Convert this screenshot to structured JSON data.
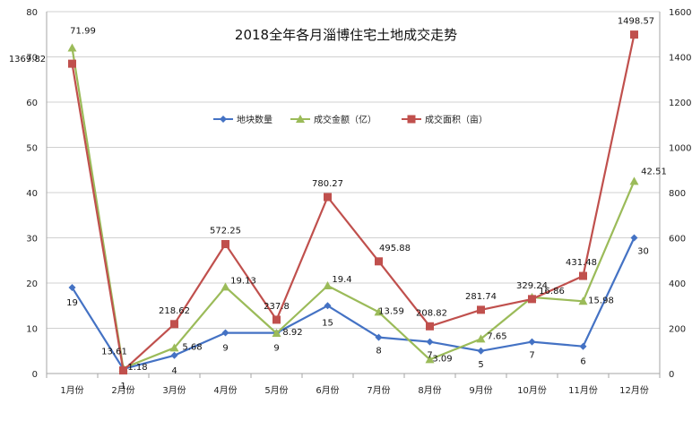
{
  "chart_data": {
    "type": "line",
    "title": "2018全年各月淄博住宅土地成交走势",
    "categories": [
      "1月份",
      "2月份",
      "3月份",
      "4月份",
      "5月份",
      "6月份",
      "7月份",
      "8月份",
      "9月份",
      "10月份",
      "11月份",
      "12月份"
    ],
    "y_left": {
      "min": 0,
      "max": 80,
      "ticks": [
        "0",
        "10",
        "20",
        "30",
        "40",
        "50",
        "60",
        "70",
        "80"
      ]
    },
    "y_right": {
      "min": 0,
      "max": 1600,
      "ticks": [
        "0",
        "200",
        "400",
        "600",
        "800",
        "1000",
        "1200",
        "1400",
        "1600"
      ]
    },
    "grid": "horizontal",
    "legend_position": "upper-middle",
    "series": [
      {
        "name": "地块数量",
        "axis": "left",
        "color": "#4472C4",
        "marker": "diamond",
        "values": [
          19,
          1,
          4,
          9,
          9,
          15,
          8,
          7,
          5,
          7,
          6,
          30
        ],
        "labels": [
          "19",
          "1",
          "4",
          "9",
          "9",
          "15",
          "8",
          "7",
          "5",
          "7",
          "6",
          "30"
        ]
      },
      {
        "name": "成交金额（亿）",
        "axis": "left",
        "color": "#9BBB59",
        "marker": "triangle",
        "values": [
          71.99,
          1.18,
          5.68,
          19.13,
          8.92,
          19.4,
          13.59,
          3.09,
          7.65,
          16.86,
          15.98,
          42.51
        ],
        "labels": [
          "71.99",
          "1.18",
          "5.68",
          "19.13",
          "8.92",
          "19.4",
          "13.59",
          "3.09",
          "7.65",
          "16.86",
          "15.98",
          "42.51"
        ]
      },
      {
        "name": "成交面积（亩）",
        "axis": "right",
        "color": "#C0504D",
        "marker": "square",
        "values": [
          1369.82,
          13.61,
          218.62,
          572.25,
          237.8,
          780.27,
          495.88,
          208.82,
          281.74,
          329.24,
          431.48,
          1498.57
        ],
        "labels": [
          "1369.82",
          "13.61",
          "218.62",
          "572.25",
          "237.8",
          "780.27",
          "495.88",
          "208.82",
          "281.74",
          "329.24",
          "431.48",
          "1498.57"
        ]
      }
    ]
  }
}
